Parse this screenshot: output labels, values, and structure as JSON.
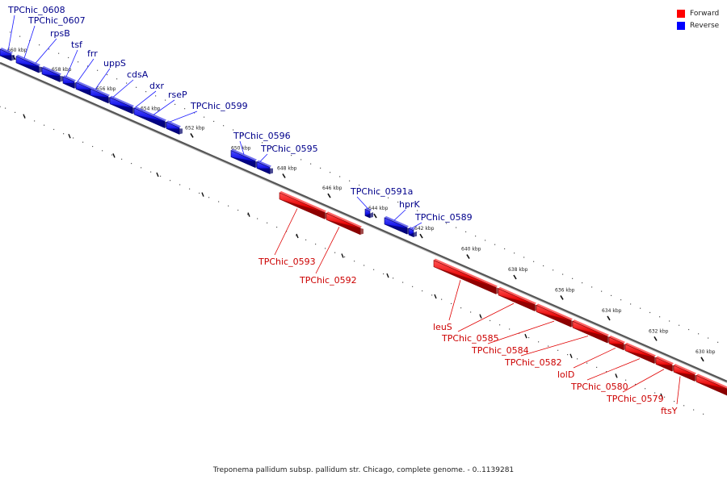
{
  "caption": "Treponema pallidum subsp. pallidum str. Chicago, complete genome. - 0..1139281",
  "legend": [
    {
      "label": "Forward",
      "color": "#ff0000"
    },
    {
      "label": "Reverse",
      "color": "#0000ff"
    }
  ],
  "colors": {
    "forward": "#ff0000",
    "reverse": "#1414e6",
    "forward_text": "#cc0000",
    "reverse_text": "#00008b",
    "backbone": "#777777"
  },
  "ticks": [
    "660 kbp",
    "658 kbp",
    "656 kbp",
    "654 kbp",
    "652 kbp",
    "650 kbp",
    "648 kbp",
    "646 kbp",
    "644 kbp",
    "642 kbp",
    "640 kbp",
    "638 kbp",
    "636 kbp",
    "634 kbp",
    "632 kbp",
    "630 kbp"
  ],
  "genes": {
    "reverse": [
      {
        "name": "TPChic_0608"
      },
      {
        "name": "TPChic_0607"
      },
      {
        "name": "rpsB"
      },
      {
        "name": "tsf"
      },
      {
        "name": "frr"
      },
      {
        "name": "uppS"
      },
      {
        "name": "cdsA"
      },
      {
        "name": "dxr"
      },
      {
        "name": "rseP"
      },
      {
        "name": "TPChic_0599"
      },
      {
        "name": "TPChic_0596"
      },
      {
        "name": "TPChic_0595"
      },
      {
        "name": "TPChic_0591a"
      },
      {
        "name": "hprK"
      },
      {
        "name": "TPChic_0589"
      }
    ],
    "forward": [
      {
        "name": "TPChic_0593"
      },
      {
        "name": "TPChic_0592"
      },
      {
        "name": "leuS"
      },
      {
        "name": "TPChic_0585"
      },
      {
        "name": "TPChic_0584"
      },
      {
        "name": "TPChic_0582"
      },
      {
        "name": "lolD"
      },
      {
        "name": "TPChic_0580"
      },
      {
        "name": "TPChic_0579"
      },
      {
        "name": "ftsY"
      }
    ]
  }
}
